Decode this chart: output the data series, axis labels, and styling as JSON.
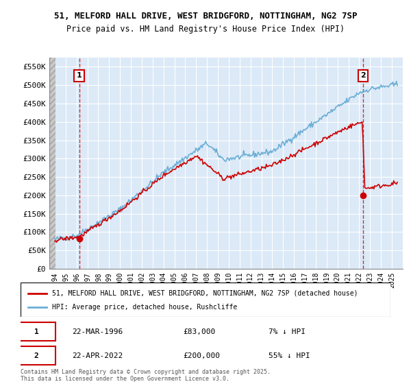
{
  "title1": "51, MELFORD HALL DRIVE, WEST BRIDGFORD, NOTTINGHAM, NG2 7SP",
  "title2": "Price paid vs. HM Land Registry's House Price Index (HPI)",
  "bg_color": "#dce9f7",
  "grid_color": "#ffffff",
  "line1_color": "#cc0000",
  "line2_color": "#6aaed6",
  "marker_color": "#cc0000",
  "annotation_box_color": "#cc0000",
  "dashed_line_color": "#cc0000",
  "legend_label1": "51, MELFORD HALL DRIVE, WEST BRIDGFORD, NOTTINGHAM, NG2 7SP (detached house)",
  "legend_label2": "HPI: Average price, detached house, Rushcliffe",
  "footnote": "Contains HM Land Registry data © Crown copyright and database right 2025.\nThis data is licensed under the Open Government Licence v3.0.",
  "purchase1_date": "22-MAR-1996",
  "purchase1_price": 83000,
  "purchase1_label": "7% ↓ HPI",
  "purchase2_date": "22-APR-2022",
  "purchase2_price": 200000,
  "purchase2_label": "55% ↓ HPI",
  "ylim": [
    0,
    575000
  ],
  "yticks": [
    0,
    50000,
    100000,
    150000,
    200000,
    250000,
    300000,
    350000,
    400000,
    450000,
    500000,
    550000
  ],
  "ytick_labels": [
    "£0",
    "£50K",
    "£100K",
    "£150K",
    "£200K",
    "£250K",
    "£300K",
    "£350K",
    "£400K",
    "£450K",
    "£500K",
    "£550K"
  ]
}
